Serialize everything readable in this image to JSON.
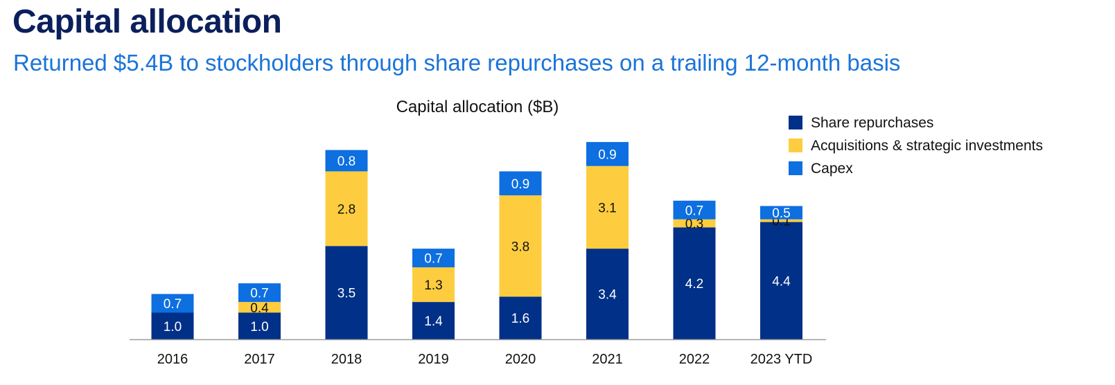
{
  "page": {
    "title": "Capital allocation",
    "subtitle": "Returned $5.4B to stockholders through share repurchases on a trailing 12-month basis"
  },
  "colors": {
    "share_repurchases": "#003087",
    "acquisitions": "#fdcd3f",
    "capex": "#0d6fe0"
  },
  "chart_data": {
    "type": "bar",
    "stacked": true,
    "title": "Capital allocation ($B)",
    "xlabel": "",
    "ylabel": "",
    "categories": [
      "2016",
      "2017",
      "2018",
      "2019",
      "2020",
      "2021",
      "2022",
      "2023 YTD"
    ],
    "series": [
      {
        "name": "Share repurchases",
        "color": "#003087",
        "label_color": "#ffffff",
        "values": [
          1.0,
          1.0,
          3.5,
          1.4,
          1.6,
          3.4,
          4.2,
          4.4
        ],
        "labels": [
          "1.0",
          "1.0",
          "3.5",
          "1.4",
          "1.6",
          "3.4",
          "4.2",
          "4.4"
        ]
      },
      {
        "name": "Acquisitions & strategic investments",
        "color": "#fdcd3f",
        "label_color": "#111111",
        "values": [
          null,
          0.4,
          2.8,
          1.3,
          3.8,
          3.1,
          0.3,
          0.1
        ],
        "labels": [
          "",
          "0.4",
          "2.8",
          "1.3",
          "3.8",
          "3.1",
          "0.3",
          "0.1"
        ]
      },
      {
        "name": "Capex",
        "color": "#0d6fe0",
        "label_color": "#ffffff",
        "values": [
          0.7,
          0.7,
          0.8,
          0.7,
          0.9,
          0.9,
          0.7,
          0.5
        ],
        "labels": [
          "0.7",
          "0.7",
          "0.8",
          "0.7",
          "0.9",
          "0.9",
          "0.7",
          "0.5"
        ]
      }
    ],
    "legend_position": "top-right",
    "grid": false
  }
}
